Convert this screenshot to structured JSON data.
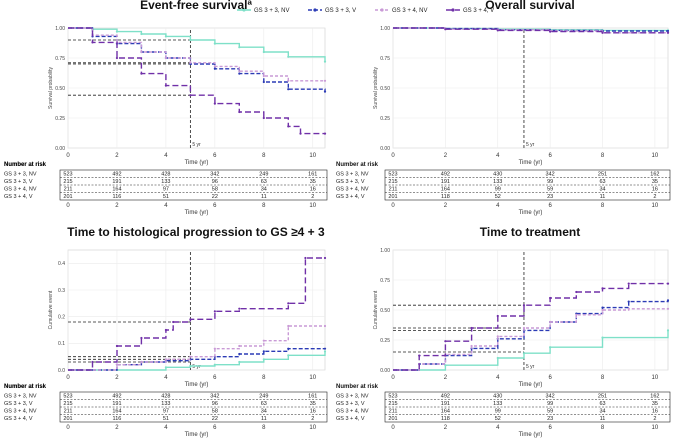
{
  "legend": {
    "items": [
      {
        "label": "GS 3 + 3, NV",
        "color": "#7ee0c8",
        "dash": "",
        "marker": "dot"
      },
      {
        "label": "GS 3 + 3, V",
        "color": "#2b3bb5",
        "dash": "4,2",
        "marker": "plus"
      },
      {
        "label": "GS 3 + 4, NV",
        "color": "#c99ad6",
        "dash": "3,2",
        "marker": "plus"
      },
      {
        "label": "GS 3 + 4, V",
        "color": "#7030a8",
        "dash": "6,3",
        "marker": "arrow"
      }
    ]
  },
  "risk_table": {
    "title": "Number at risk",
    "row_labels": [
      "GS 3 + 3, NV",
      "GS 3 + 3, V",
      "GS 3 + 4, NV",
      "GS 3 + 4, V"
    ],
    "x_ticks": [
      "0",
      "2",
      "4",
      "6",
      "8",
      "10"
    ]
  },
  "chart_data": [
    {
      "type": "line",
      "title": "Event-free survivalª",
      "xlabel": "Time (yr)",
      "ylabel": "Survival probability",
      "xlim": [
        0,
        10.5
      ],
      "ylim": [
        0,
        1
      ],
      "x_ticks": [
        0,
        2,
        4,
        6,
        8,
        10
      ],
      "y_ticks": [
        "0.00",
        "0.25",
        "0.50",
        "0.75",
        "1.00"
      ],
      "annotation": "5 yr",
      "reference_lines": {
        "x": 5,
        "y": [
          0.9,
          0.71,
          0.7,
          0.44
        ]
      },
      "series": [
        {
          "name": "GS 3 + 3, NV",
          "x": [
            0,
            1,
            2,
            3,
            4,
            5,
            6,
            7,
            8,
            9,
            10.5
          ],
          "y": [
            1.0,
            0.99,
            0.97,
            0.95,
            0.93,
            0.9,
            0.87,
            0.84,
            0.8,
            0.76,
            0.72
          ]
        },
        {
          "name": "GS 3 + 3, V",
          "x": [
            0,
            1,
            2,
            3,
            4,
            5,
            6,
            7,
            8,
            9,
            10.5
          ],
          "y": [
            1.0,
            0.93,
            0.87,
            0.8,
            0.75,
            0.7,
            0.66,
            0.62,
            0.55,
            0.49,
            0.47
          ]
        },
        {
          "name": "GS 3 + 4, NV",
          "x": [
            0,
            1,
            2,
            3,
            4,
            5,
            6,
            7,
            8,
            9,
            10.5
          ],
          "y": [
            1.0,
            0.94,
            0.88,
            0.8,
            0.75,
            0.71,
            0.68,
            0.64,
            0.6,
            0.56,
            0.56
          ]
        },
        {
          "name": "GS 3 + 4, V",
          "x": [
            0,
            1,
            2,
            3,
            4,
            5,
            6,
            7,
            8,
            9,
            9.5,
            10.5
          ],
          "y": [
            1.0,
            0.88,
            0.75,
            0.62,
            0.52,
            0.44,
            0.37,
            0.3,
            0.25,
            0.18,
            0.12,
            0.12
          ]
        }
      ],
      "risk_values": [
        [
          "523",
          "492",
          "428",
          "342",
          "249",
          "161"
        ],
        [
          "215",
          "191",
          "133",
          "96",
          "63",
          "35"
        ],
        [
          "211",
          "164",
          "97",
          "58",
          "34",
          "16"
        ],
        [
          "201",
          "116",
          "51",
          "22",
          "11",
          "2"
        ]
      ]
    },
    {
      "type": "line",
      "title": "Overall survival",
      "xlabel": "Time (yr)",
      "ylabel": "Survival probability",
      "xlim": [
        0,
        10.5
      ],
      "ylim": [
        0,
        1
      ],
      "x_ticks": [
        0,
        2,
        4,
        6,
        8,
        10
      ],
      "y_ticks": [
        "0.00",
        "0.25",
        "0.50",
        "0.75",
        "1.00"
      ],
      "annotation": "5 yr",
      "reference_lines": {
        "x": 5,
        "y": []
      },
      "series": [
        {
          "name": "GS 3 + 3, NV",
          "x": [
            0,
            2,
            4,
            6,
            8,
            10.5
          ],
          "y": [
            1.0,
            0.995,
            0.99,
            0.985,
            0.98,
            0.98
          ]
        },
        {
          "name": "GS 3 + 3, V",
          "x": [
            0,
            2,
            4,
            6,
            8,
            10.5
          ],
          "y": [
            1.0,
            0.995,
            0.985,
            0.98,
            0.975,
            0.975
          ]
        },
        {
          "name": "GS 3 + 4, NV",
          "x": [
            0,
            2,
            4,
            6,
            8,
            10.5
          ],
          "y": [
            1.0,
            0.99,
            0.985,
            0.975,
            0.96,
            0.96
          ]
        },
        {
          "name": "GS 3 + 4, V",
          "x": [
            0,
            2,
            4,
            6,
            8,
            10.5
          ],
          "y": [
            1.0,
            0.99,
            0.98,
            0.97,
            0.96,
            0.96
          ]
        }
      ],
      "risk_values": [
        [
          "523",
          "492",
          "430",
          "342",
          "251",
          "162"
        ],
        [
          "215",
          "191",
          "133",
          "99",
          "63",
          "35"
        ],
        [
          "211",
          "164",
          "99",
          "59",
          "34",
          "16"
        ],
        [
          "201",
          "118",
          "52",
          "23",
          "11",
          "2"
        ]
      ]
    },
    {
      "type": "line",
      "title": "Time to histological progression to GS ≥4 + 3",
      "xlabel": "Time (yr)",
      "ylabel": "Cumulative event",
      "xlim": [
        0,
        10.5
      ],
      "ylim": [
        0,
        0.45
      ],
      "x_ticks": [
        0,
        2,
        4,
        6,
        8,
        10
      ],
      "y_ticks": [
        "0.0",
        "0.1",
        "0.2",
        "0.3",
        "0.4"
      ],
      "annotation": "5 yr",
      "reference_lines": {
        "x": 5,
        "y": [
          0.18,
          0.05,
          0.04,
          0.03
        ]
      },
      "series": [
        {
          "name": "GS 3 + 3, NV",
          "x": [
            0,
            2,
            4,
            5,
            6,
            7,
            8,
            9,
            10.5
          ],
          "y": [
            0,
            0.0,
            0.01,
            0.015,
            0.02,
            0.03,
            0.04,
            0.055,
            0.07
          ]
        },
        {
          "name": "GS 3 + 3, V",
          "x": [
            0,
            2,
            3,
            4,
            5,
            6,
            7,
            8,
            9,
            10.5
          ],
          "y": [
            0,
            0.02,
            0.03,
            0.035,
            0.04,
            0.05,
            0.06,
            0.07,
            0.08,
            0.08
          ]
        },
        {
          "name": "GS 3 + 4, NV",
          "x": [
            0,
            2,
            3,
            4,
            5,
            6,
            7,
            8,
            9,
            10.5
          ],
          "y": [
            0,
            0.02,
            0.03,
            0.04,
            0.05,
            0.08,
            0.09,
            0.11,
            0.165,
            0.165
          ]
        },
        {
          "name": "GS 3 + 4, V",
          "x": [
            0,
            1,
            2,
            3,
            4,
            4.3,
            5,
            6,
            7,
            9,
            9.7,
            10.5
          ],
          "y": [
            0,
            0.03,
            0.09,
            0.12,
            0.15,
            0.18,
            0.19,
            0.22,
            0.23,
            0.25,
            0.42,
            0.42
          ]
        }
      ],
      "risk_values": [
        [
          "523",
          "492",
          "428",
          "342",
          "249",
          "161"
        ],
        [
          "215",
          "191",
          "133",
          "96",
          "63",
          "35"
        ],
        [
          "211",
          "164",
          "97",
          "58",
          "34",
          "16"
        ],
        [
          "201",
          "116",
          "51",
          "22",
          "11",
          "2"
        ]
      ]
    },
    {
      "type": "line",
      "title": "Time to treatment",
      "xlabel": "Time (yr)",
      "ylabel": "Cumulative event",
      "xlim": [
        0,
        10.5
      ],
      "ylim": [
        0,
        1
      ],
      "x_ticks": [
        0,
        2,
        4,
        6,
        8,
        10
      ],
      "y_ticks": [
        "0.00",
        "0.25",
        "0.50",
        "0.75",
        "1.00"
      ],
      "annotation": "5 yr",
      "reference_lines": {
        "x": 5,
        "y": [
          0.54,
          0.35,
          0.33,
          0.15
        ]
      },
      "series": [
        {
          "name": "GS 3 + 3, NV",
          "x": [
            0,
            2,
            4,
            5,
            6,
            8,
            10.5
          ],
          "y": [
            0,
            0.04,
            0.1,
            0.14,
            0.19,
            0.27,
            0.33
          ]
        },
        {
          "name": "GS 3 + 3, V",
          "x": [
            0,
            1,
            2,
            3,
            4,
            5,
            6,
            7,
            8,
            9,
            10.5
          ],
          "y": [
            0,
            0.05,
            0.12,
            0.18,
            0.26,
            0.33,
            0.4,
            0.47,
            0.52,
            0.57,
            0.58
          ]
        },
        {
          "name": "GS 3 + 4, NV",
          "x": [
            0,
            1,
            2,
            3,
            4,
            5,
            6,
            7,
            8,
            9,
            10.5
          ],
          "y": [
            0,
            0.05,
            0.13,
            0.2,
            0.28,
            0.35,
            0.4,
            0.46,
            0.5,
            0.51,
            0.51
          ]
        },
        {
          "name": "GS 3 + 4, V",
          "x": [
            0,
            1,
            2,
            3,
            4,
            5,
            6,
            7,
            8,
            9,
            10.5
          ],
          "y": [
            0,
            0.12,
            0.24,
            0.35,
            0.45,
            0.54,
            0.6,
            0.65,
            0.68,
            0.72,
            0.72
          ]
        }
      ],
      "risk_values": [
        [
          "523",
          "492",
          "430",
          "342",
          "251",
          "162"
        ],
        [
          "215",
          "191",
          "133",
          "99",
          "63",
          "35"
        ],
        [
          "211",
          "164",
          "99",
          "59",
          "34",
          "16"
        ],
        [
          "201",
          "118",
          "52",
          "23",
          "11",
          "2"
        ]
      ]
    }
  ]
}
